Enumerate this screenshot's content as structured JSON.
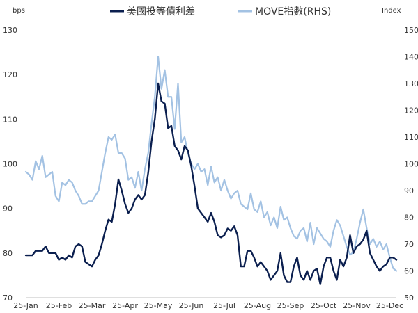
{
  "chart_data": {
    "type": "line",
    "left_axis_unit": "bps",
    "right_axis_unit": "Index",
    "y_left": {
      "min": 70,
      "max": 130,
      "ticks": [
        70,
        80,
        90,
        100,
        110,
        120,
        130
      ]
    },
    "y_right": {
      "min": 50,
      "max": 150,
      "ticks": [
        50,
        60,
        70,
        80,
        90,
        100,
        110,
        120,
        130,
        140,
        150
      ]
    },
    "x_ticks": [
      "25-Jan",
      "25-Feb",
      "25-Mar",
      "25-Apr",
      "25-May",
      "25-Jun",
      "25-Jul",
      "25-Aug",
      "25-Sep",
      "25-Oct",
      "25-Nov",
      "25-Dec"
    ],
    "series": [
      {
        "name": "美國投等債利差",
        "axis": "left",
        "color": "#0b1f4f",
        "values": [
          [
            0,
            79.5
          ],
          [
            2,
            79.5
          ],
          [
            3,
            80.5
          ],
          [
            5,
            80.5
          ],
          [
            6,
            81.5
          ],
          [
            7,
            80
          ],
          [
            9,
            80
          ],
          [
            10,
            78.5
          ],
          [
            11,
            79
          ],
          [
            12,
            78.5
          ],
          [
            13,
            79.5
          ],
          [
            14,
            79
          ],
          [
            15,
            81.5
          ],
          [
            16,
            82
          ],
          [
            17,
            81.5
          ],
          [
            18,
            78
          ],
          [
            19,
            77.5
          ],
          [
            20,
            77
          ],
          [
            21,
            78.5
          ],
          [
            22,
            79.5
          ],
          [
            23,
            82
          ],
          [
            24,
            85
          ],
          [
            25,
            87.5
          ],
          [
            26,
            87
          ],
          [
            27,
            91
          ],
          [
            28,
            96.5
          ],
          [
            29,
            94
          ],
          [
            30,
            91
          ],
          [
            31,
            89
          ],
          [
            32,
            90
          ],
          [
            33,
            92
          ],
          [
            34,
            93
          ],
          [
            35,
            92
          ],
          [
            36,
            93
          ],
          [
            37,
            98
          ],
          [
            38,
            105
          ],
          [
            39,
            110
          ],
          [
            40,
            118
          ],
          [
            41,
            114
          ],
          [
            42,
            113.5
          ],
          [
            43,
            108
          ],
          [
            44,
            108.5
          ],
          [
            45,
            104
          ],
          [
            46,
            103
          ],
          [
            47,
            101
          ],
          [
            48,
            104
          ],
          [
            49,
            103
          ],
          [
            50,
            99.5
          ],
          [
            51,
            95
          ],
          [
            52,
            90
          ],
          [
            53,
            89
          ],
          [
            54,
            88
          ],
          [
            55,
            87
          ],
          [
            56,
            89
          ],
          [
            57,
            87
          ],
          [
            58,
            84
          ],
          [
            59,
            83.5
          ],
          [
            60,
            84
          ],
          [
            61,
            85.5
          ],
          [
            62,
            85
          ],
          [
            63,
            86
          ],
          [
            64,
            84
          ],
          [
            65,
            77
          ],
          [
            66,
            77
          ],
          [
            67,
            80.5
          ],
          [
            68,
            80.5
          ],
          [
            69,
            79
          ],
          [
            70,
            77
          ],
          [
            71,
            78
          ],
          [
            72,
            77
          ],
          [
            73,
            76
          ],
          [
            74,
            74
          ],
          [
            75,
            75
          ],
          [
            76,
            76
          ],
          [
            77,
            80
          ],
          [
            78,
            75
          ],
          [
            79,
            73.5
          ],
          [
            80,
            73.5
          ],
          [
            81,
            77
          ],
          [
            82,
            79
          ],
          [
            83,
            75
          ],
          [
            84,
            74
          ],
          [
            85,
            76
          ],
          [
            86,
            74
          ],
          [
            87,
            76
          ],
          [
            88,
            76.5
          ],
          [
            89,
            73
          ],
          [
            90,
            77
          ],
          [
            91,
            79
          ],
          [
            92,
            79
          ],
          [
            93,
            76
          ],
          [
            94,
            74
          ],
          [
            95,
            78.5
          ],
          [
            96,
            77
          ],
          [
            97,
            79
          ],
          [
            98,
            84
          ],
          [
            99,
            80
          ],
          [
            100,
            81.5
          ],
          [
            101,
            82
          ],
          [
            102,
            83
          ],
          [
            103,
            85
          ],
          [
            104,
            80
          ],
          [
            105,
            78.5
          ],
          [
            106,
            77
          ],
          [
            107,
            76
          ],
          [
            108,
            77
          ],
          [
            109,
            77.5
          ],
          [
            110,
            79
          ],
          [
            111,
            79
          ],
          [
            112,
            78.5
          ]
        ]
      },
      {
        "name": "MOVE指數(RHS)",
        "axis": "right",
        "color": "#a3c2e3",
        "values": [
          [
            0,
            97
          ],
          [
            1,
            96
          ],
          [
            2,
            94
          ],
          [
            3,
            101
          ],
          [
            4,
            98
          ],
          [
            5,
            103
          ],
          [
            6,
            95
          ],
          [
            7,
            96
          ],
          [
            8,
            97
          ],
          [
            9,
            88
          ],
          [
            10,
            86
          ],
          [
            11,
            93
          ],
          [
            12,
            92
          ],
          [
            13,
            94
          ],
          [
            14,
            93
          ],
          [
            15,
            90
          ],
          [
            16,
            88
          ],
          [
            17,
            85
          ],
          [
            18,
            85
          ],
          [
            19,
            86
          ],
          [
            20,
            86
          ],
          [
            21,
            88
          ],
          [
            22,
            90
          ],
          [
            23,
            97
          ],
          [
            24,
            104
          ],
          [
            25,
            110
          ],
          [
            26,
            109
          ],
          [
            27,
            111
          ],
          [
            28,
            104
          ],
          [
            29,
            104
          ],
          [
            30,
            102
          ],
          [
            31,
            94
          ],
          [
            32,
            95
          ],
          [
            33,
            91
          ],
          [
            34,
            97
          ],
          [
            35,
            90
          ],
          [
            36,
            98
          ],
          [
            37,
            104
          ],
          [
            38,
            115
          ],
          [
            39,
            125
          ],
          [
            40,
            140
          ],
          [
            41,
            128
          ],
          [
            42,
            135
          ],
          [
            43,
            125
          ],
          [
            44,
            125
          ],
          [
            45,
            113
          ],
          [
            46,
            130
          ],
          [
            47,
            108
          ],
          [
            48,
            110
          ],
          [
            49,
            104
          ],
          [
            50,
            100
          ],
          [
            51,
            98
          ],
          [
            52,
            100
          ],
          [
            53,
            97
          ],
          [
            54,
            98
          ],
          [
            55,
            92
          ],
          [
            56,
            99
          ],
          [
            57,
            93
          ],
          [
            58,
            95
          ],
          [
            59,
            90
          ],
          [
            60,
            94
          ],
          [
            61,
            90
          ],
          [
            62,
            87
          ],
          [
            63,
            89
          ],
          [
            64,
            90
          ],
          [
            65,
            85
          ],
          [
            66,
            84
          ],
          [
            67,
            83
          ],
          [
            68,
            89
          ],
          [
            69,
            83
          ],
          [
            70,
            82
          ],
          [
            71,
            86
          ],
          [
            72,
            80
          ],
          [
            73,
            82
          ],
          [
            74,
            77
          ],
          [
            75,
            80
          ],
          [
            76,
            76
          ],
          [
            77,
            84
          ],
          [
            78,
            79
          ],
          [
            79,
            80
          ],
          [
            80,
            76
          ],
          [
            81,
            73
          ],
          [
            82,
            72
          ],
          [
            83,
            75
          ],
          [
            84,
            76
          ],
          [
            85,
            71
          ],
          [
            86,
            78
          ],
          [
            87,
            70
          ],
          [
            88,
            76
          ],
          [
            89,
            74
          ],
          [
            90,
            72
          ],
          [
            91,
            71
          ],
          [
            92,
            69
          ],
          [
            93,
            75
          ],
          [
            94,
            79
          ],
          [
            95,
            77
          ],
          [
            96,
            73
          ],
          [
            97,
            69
          ],
          [
            98,
            66
          ],
          [
            99,
            67
          ],
          [
            100,
            72
          ],
          [
            101,
            78
          ],
          [
            102,
            83
          ],
          [
            103,
            76
          ],
          [
            104,
            70
          ],
          [
            105,
            72
          ],
          [
            106,
            69
          ],
          [
            107,
            71
          ],
          [
            108,
            68
          ],
          [
            109,
            70
          ],
          [
            110,
            65
          ],
          [
            111,
            61
          ],
          [
            112,
            60
          ]
        ]
      }
    ],
    "x_range": [
      0,
      112
    ],
    "x_tick_positions": [
      0,
      10,
      20,
      30,
      40,
      50,
      60,
      70,
      80,
      90,
      100,
      110
    ],
    "grid": false,
    "legend_placement": "top-center"
  }
}
